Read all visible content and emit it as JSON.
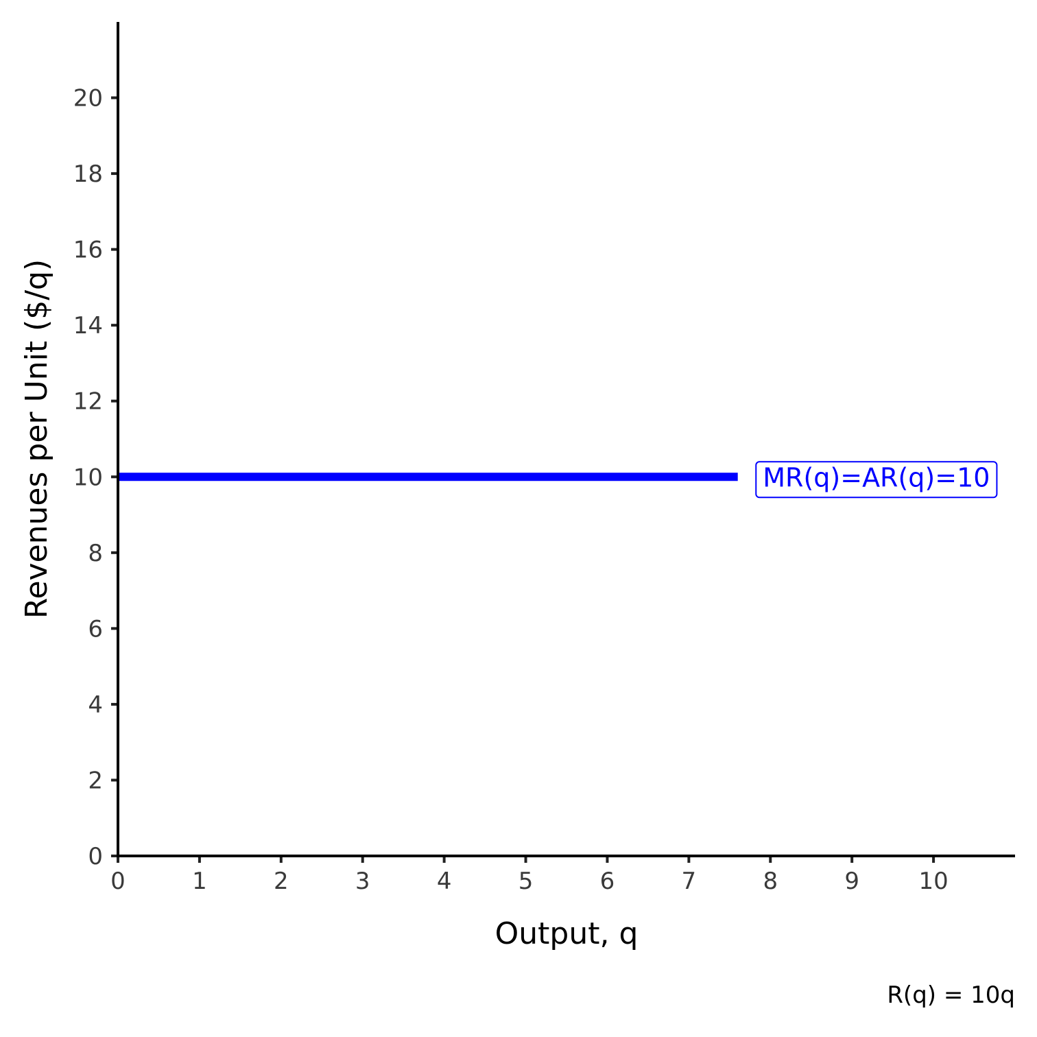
{
  "chart_data": {
    "type": "line",
    "xlabel": "Output, q",
    "ylabel": "Revenues per Unit ($/q)",
    "xlim": [
      0,
      11
    ],
    "ylim": [
      0,
      22
    ],
    "x_ticks": [
      0,
      1,
      2,
      3,
      4,
      5,
      6,
      7,
      8,
      9,
      10
    ],
    "y_ticks": [
      0,
      2,
      4,
      6,
      8,
      10,
      12,
      14,
      16,
      18,
      20
    ],
    "grid": false,
    "series": [
      {
        "x": [
          0,
          7.6
        ],
        "values": [
          10,
          10
        ],
        "color": "#0000ff"
      }
    ],
    "annotations": [
      {
        "text": "MR(q)=AR(q)=10",
        "x": 9.3,
        "y": 10,
        "color": "#0000ff"
      }
    ],
    "caption": "R(q) = 10q"
  }
}
